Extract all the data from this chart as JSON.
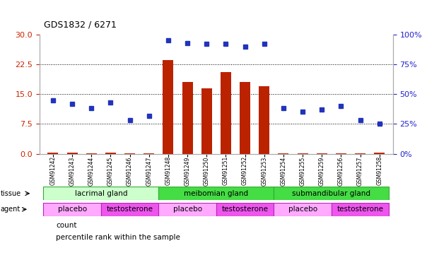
{
  "title": "GDS1832 / 6271",
  "samples": [
    "GSM91242",
    "GSM91243",
    "GSM91244",
    "GSM91245",
    "GSM91246",
    "GSM91247",
    "GSM91248",
    "GSM91249",
    "GSM91250",
    "GSM91251",
    "GSM91252",
    "GSM91253",
    "GSM91254",
    "GSM91255",
    "GSM91259",
    "GSM91256",
    "GSM91257",
    "GSM91258"
  ],
  "count_values": [
    0.2,
    0.2,
    0.1,
    0.2,
    0.1,
    0.1,
    23.5,
    18.0,
    16.5,
    20.5,
    18.0,
    17.0,
    0.1,
    0.1,
    0.1,
    0.1,
    0.1,
    0.2
  ],
  "percentile_values": [
    45,
    42,
    38,
    43,
    28,
    32,
    95,
    93,
    92,
    92,
    90,
    92,
    38,
    35,
    37,
    40,
    28,
    25
  ],
  "ylim_left": [
    0,
    30
  ],
  "ylim_right": [
    0,
    100
  ],
  "yticks_left": [
    0,
    7.5,
    15,
    22.5,
    30
  ],
  "yticks_right": [
    0,
    25,
    50,
    75,
    100
  ],
  "bar_color": "#bb2200",
  "dot_color": "#2233bb",
  "tissue_boundaries": [
    {
      "label": "lacrimal gland",
      "start": 0,
      "end": 6,
      "color": "#ccffcc"
    },
    {
      "label": "meibomian gland",
      "start": 6,
      "end": 12,
      "color": "#44dd44"
    },
    {
      "label": "submandibular gland",
      "start": 12,
      "end": 18,
      "color": "#44dd44"
    }
  ],
  "agent_boundaries": [
    {
      "label": "placebo",
      "start": 0,
      "end": 3,
      "color": "#ffaaff"
    },
    {
      "label": "testosterone",
      "start": 3,
      "end": 6,
      "color": "#ee55ee"
    },
    {
      "label": "placebo",
      "start": 6,
      "end": 9,
      "color": "#ffaaff"
    },
    {
      "label": "testosterone",
      "start": 9,
      "end": 12,
      "color": "#ee55ee"
    },
    {
      "label": "placebo",
      "start": 12,
      "end": 15,
      "color": "#ffaaff"
    },
    {
      "label": "testosterone",
      "start": 15,
      "end": 18,
      "color": "#ee55ee"
    }
  ],
  "left_axis_color": "#cc2200",
  "right_axis_color": "#2222cc",
  "tissue_edge_color": "#33aa33",
  "agent_edge_color": "#bb22bb",
  "n_samples": 18
}
